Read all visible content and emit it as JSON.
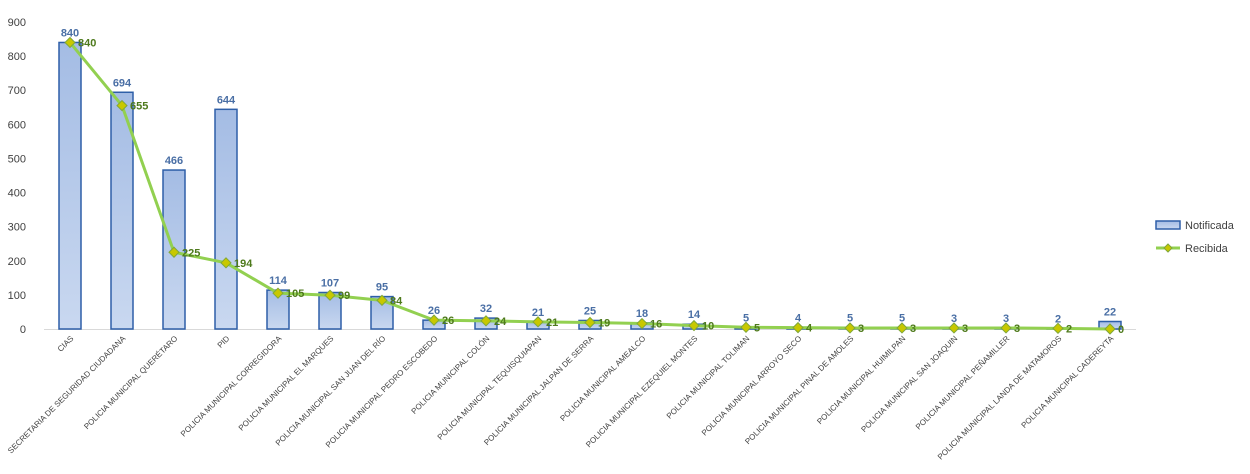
{
  "chart_data": {
    "type": "bar",
    "title": "",
    "xlabel": "",
    "ylabel": "",
    "ylim": [
      0,
      900
    ],
    "yticks": [
      0,
      100,
      200,
      300,
      400,
      500,
      600,
      700,
      800,
      900
    ],
    "grid": false,
    "legend_position": "right",
    "categories": [
      "CIAS",
      "SECRETARIA DE SEGURIDAD CIUDADANA",
      "POLICIA MUNICIPAL QUERÉTARO",
      "PID",
      "POLICIA MUNICIPAL CORREGIDORA",
      "POLICIA MUNICIPAL EL MARQUES",
      "POLICIA MUNICIPAL SAN JUAN DEL RÍO",
      "POLICIA MUNICIPAL PEDRO ESCOBEDO",
      "POLICIA MUNICIPAL COLÓN",
      "POLICIA MUNICIPAL TEQUISQUIAPAN",
      "POLICIA MUNICIPAL JALPAN DE SERRA",
      "POLICIA MUNICIPAL AMEALCO",
      "POLICIA MUNICIPAL EZEQUIEL MONTES",
      "POLICIA MUNICIPAL TOLIMAN",
      "POLICIA MUNICIPAL ARROYO SECO",
      "POLICIA MUNICIPAL PINAL DE AMOLES",
      "POLICIA MUNICIPAL HUIMILPAN",
      "POLICIA MUNICIPAL SAN JOAQUIN",
      "POLICIA MUNICIPAL PEÑAMILLER",
      "POLICIA MUNICIPAL LANDA DE MATAMOROS",
      "POLICIA MUNICIPAL CADEREYTA"
    ],
    "series": [
      {
        "name": "Notificada",
        "type": "bar",
        "color": "#aec4e8",
        "stroke": "#2e5fa8",
        "label_color": "#4a6fa5",
        "values": [
          840,
          694,
          466,
          644,
          114,
          107,
          95,
          26,
          32,
          21,
          25,
          18,
          14,
          5,
          4,
          5,
          5,
          3,
          3,
          2,
          22
        ]
      },
      {
        "name": "Recibida",
        "type": "line",
        "color": "#92d050",
        "marker_color": "#c8c800",
        "label_color": "#4e7a1c",
        "values": [
          840,
          655,
          225,
          194,
          105,
          99,
          84,
          26,
          24,
          21,
          19,
          16,
          10,
          5,
          4,
          3,
          3,
          3,
          3,
          2,
          0
        ]
      }
    ]
  }
}
